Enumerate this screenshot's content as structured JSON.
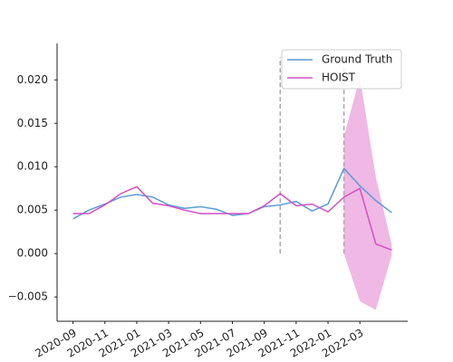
{
  "chart_data": {
    "type": "line",
    "x": [
      "2020-09",
      "2020-10",
      "2020-11",
      "2020-12",
      "2021-01",
      "2021-02",
      "2021-03",
      "2021-04",
      "2021-05",
      "2021-06",
      "2021-07",
      "2021-08",
      "2021-09",
      "2021-10",
      "2021-11",
      "2021-12",
      "2022-01",
      "2022-02",
      "2022-03",
      "2022-04",
      "2022-05"
    ],
    "series": [
      {
        "name": "Ground Truth",
        "color": "#5b9bd5",
        "values": [
          0.004,
          0.005,
          0.0057,
          0.0065,
          0.0068,
          0.0065,
          0.0056,
          0.0052,
          0.0054,
          0.0051,
          0.0044,
          0.0046,
          0.0054,
          0.0056,
          0.006,
          0.0049,
          0.0057,
          0.0098,
          0.0078,
          0.0061,
          0.0047
        ]
      },
      {
        "name": "HOIST",
        "color": "#d44fc4",
        "values": [
          0.0046,
          0.0046,
          0.0056,
          0.0069,
          0.0077,
          0.0058,
          0.0055,
          0.005,
          0.0046,
          0.0046,
          0.0046,
          0.0046,
          0.0055,
          0.0069,
          0.0055,
          0.0057,
          0.0048,
          0.0065,
          0.0075,
          0.0011,
          0.0004
        ]
      }
    ],
    "band": {
      "color": "#f0b8e4",
      "lower": [
        null,
        null,
        null,
        null,
        null,
        null,
        null,
        null,
        null,
        null,
        null,
        null,
        null,
        null,
        null,
        null,
        null,
        0.0,
        -0.0055,
        -0.0065,
        -0.0002
      ],
      "upper": [
        null,
        null,
        null,
        null,
        null,
        null,
        null,
        null,
        null,
        null,
        null,
        null,
        null,
        null,
        null,
        null,
        null,
        0.0135,
        0.0203,
        0.0088,
        0.001
      ]
    },
    "vlines": [
      {
        "x": "2021-10",
        "ymin": 0,
        "ymax": 0.0226
      },
      {
        "x": "2022-02",
        "ymin": 0,
        "ymax": 0.0226
      }
    ],
    "vline_color": "#aaaaaa",
    "xlim": [
      "2020-08",
      "2022-06"
    ],
    "xticks": [
      "2020-09",
      "2020-11",
      "2021-01",
      "2021-03",
      "2021-05",
      "2021-07",
      "2021-09",
      "2021-11",
      "2022-01",
      "2022-03"
    ],
    "ylim": [
      -0.0078,
      0.0242
    ],
    "yticks": [
      {
        "value": -0.005,
        "label": "−0.005"
      },
      {
        "value": 0,
        "label": "0.000"
      },
      {
        "value": 0.005,
        "label": "0.005"
      },
      {
        "value": 0.01,
        "label": "0.010"
      },
      {
        "value": 0.015,
        "label": "0.015"
      },
      {
        "value": 0.02,
        "label": "0.020"
      }
    ],
    "grid": false,
    "legend": "upper right"
  }
}
